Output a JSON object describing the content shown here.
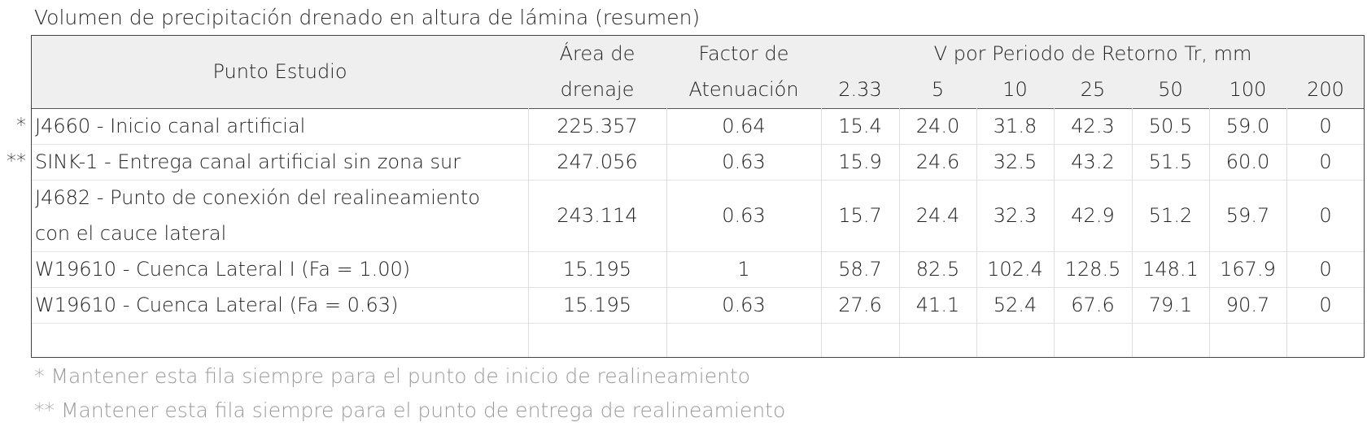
{
  "title": "Volumen de precipitación drenado en altura de lámina (resumen)",
  "header": {
    "punto": "Punto Estudio",
    "area_l1": "Área de",
    "area_l2": "drenaje",
    "factor_l1": "Factor de",
    "factor_l2": "Atenuación",
    "tr_group": "V por Periodo de Retorno Tr, mm",
    "tr": [
      "2.33",
      "5",
      "10",
      "25",
      "50",
      "100",
      "200"
    ]
  },
  "rows": [
    {
      "marker": "*",
      "punto": "J4660 - Inicio canal artificial",
      "area": "225.357",
      "factor": "0.64",
      "v": [
        "15.4",
        "24.0",
        "31.8",
        "42.3",
        "50.5",
        "59.0",
        "0"
      ]
    },
    {
      "marker": "**",
      "punto": "SINK-1 - Entrega canal artificial sin zona sur",
      "area": "247.056",
      "factor": "0.63",
      "v": [
        "15.9",
        "24.6",
        "32.5",
        "43.2",
        "51.5",
        "60.0",
        "0"
      ]
    },
    {
      "marker": "",
      "punto_l1": "J4682 - Punto de conexión del realineamiento",
      "punto_l2": "con el cauce lateral",
      "area": "243.114",
      "factor": "0.63",
      "v": [
        "15.7",
        "24.4",
        "32.3",
        "42.9",
        "51.2",
        "59.7",
        "0"
      ]
    },
    {
      "marker": "",
      "punto": "W19610 - Cuenca Lateral I (Fa = 1.00)",
      "area": "15.195",
      "factor": "1",
      "v": [
        "58.7",
        "82.5",
        "102.4",
        "128.5",
        "148.1",
        "167.9",
        "0"
      ]
    },
    {
      "marker": "",
      "punto": "W19610 - Cuenca Lateral (Fa = 0.63)",
      "area": "15.195",
      "factor": "0.63",
      "v": [
        "27.6",
        "41.1",
        "52.4",
        "67.6",
        "79.1",
        "90.7",
        "0"
      ]
    }
  ],
  "notes": [
    "* Mantener esta fila siempre para el punto de inicio de realineamiento",
    "** Mantener esta fila siempre para el punto de entrega de realineamiento"
  ]
}
